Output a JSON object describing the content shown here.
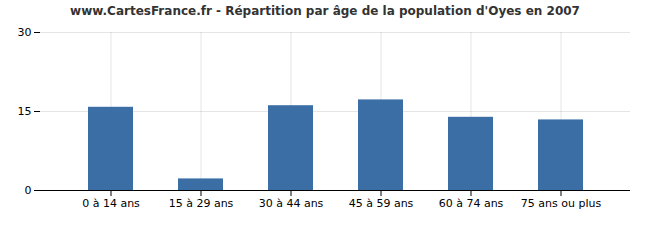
{
  "chart_data": {
    "type": "bar",
    "title": "www.CartesFrance.fr - Répartition par âge de la population d'Oyes en 2007",
    "categories": [
      "0 à 14 ans",
      "15 à 29 ans",
      "30 à 44 ans",
      "45 à 59 ans",
      "60 à 74 ans",
      "75 ans ou plus"
    ],
    "values": [
      15.8,
      2.2,
      16.1,
      17.2,
      13.9,
      13.4
    ],
    "color": "#3a6ea5",
    "ylim": [
      0,
      30
    ],
    "yticks": [
      0,
      15,
      30
    ],
    "grid": true
  }
}
